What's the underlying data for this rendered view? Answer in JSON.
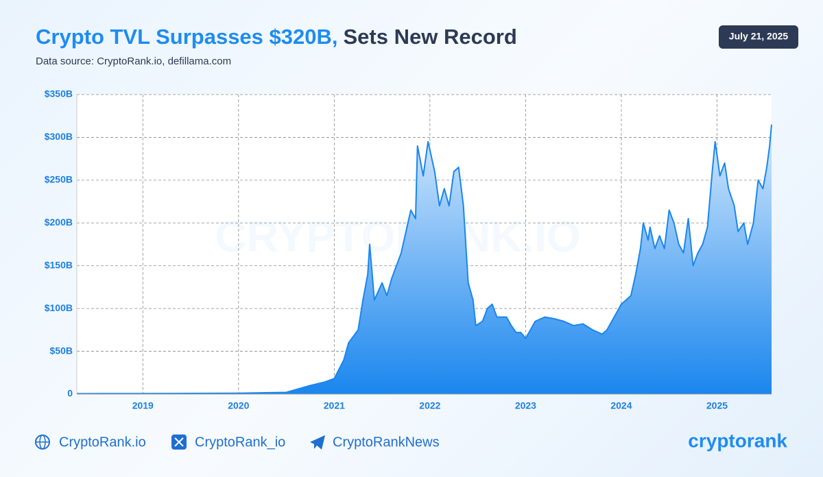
{
  "chart_data": {
    "type": "area",
    "title": "Crypto TVL Surpasses $320B,",
    "title_rest": "Sets New Record",
    "subtitle": "Data source: CryptoRank.io, defillama.com",
    "date": "July 21, 2025",
    "watermark": "CRYPTORANK.IO",
    "logo": "cryptorank",
    "footer_links": [
      "CryptoRank.io",
      "CryptoRank_io",
      "CryptoRankNews"
    ],
    "xlim": [
      2018.31,
      2025.57
    ],
    "xticks": [
      2019,
      2020,
      2021,
      2022,
      2023,
      2024,
      2025
    ],
    "ylim": [
      0,
      350
    ],
    "yticks": [
      {
        "value": 0,
        "label": "0"
      },
      {
        "value": 50,
        "label": "$50B"
      },
      {
        "value": 100,
        "label": "$100B"
      },
      {
        "value": 150,
        "label": "$150B"
      },
      {
        "value": 200,
        "label": "$200B"
      },
      {
        "value": 250,
        "label": "$250B"
      },
      {
        "value": 300,
        "label": "$300B"
      },
      {
        "value": 350,
        "label": "$350B"
      }
    ],
    "grid": true,
    "color": "#1a86ee",
    "series": [
      {
        "name": "TVL",
        "color": "#1a86ee",
        "x": [
          2018.31,
          2018.6,
          2019.0,
          2019.5,
          2020.0,
          2020.5,
          2020.75,
          2020.9,
          2021.0,
          2021.1,
          2021.15,
          2021.25,
          2021.3,
          2021.35,
          2021.37,
          2021.42,
          2021.5,
          2021.55,
          2021.6,
          2021.7,
          2021.8,
          2021.85,
          2021.87,
          2021.93,
          2021.98,
          2022.05,
          2022.1,
          2022.15,
          2022.2,
          2022.25,
          2022.3,
          2022.35,
          2022.38,
          2022.4,
          2022.45,
          2022.48,
          2022.55,
          2022.6,
          2022.65,
          2022.7,
          2022.8,
          2022.85,
          2022.9,
          2022.95,
          2023.0,
          2023.05,
          2023.1,
          2023.2,
          2023.3,
          2023.4,
          2023.5,
          2023.6,
          2023.7,
          2023.8,
          2023.85,
          2023.9,
          2023.95,
          2024.0,
          2024.05,
          2024.1,
          2024.15,
          2024.2,
          2024.23,
          2024.28,
          2024.3,
          2024.35,
          2024.4,
          2024.45,
          2024.5,
          2024.55,
          2024.6,
          2024.65,
          2024.7,
          2024.75,
          2024.8,
          2024.85,
          2024.9,
          2024.95,
          2024.98,
          2025.03,
          2025.08,
          2025.12,
          2025.18,
          2025.22,
          2025.28,
          2025.32,
          2025.38,
          2025.43,
          2025.48,
          2025.52,
          2025.55,
          2025.57
        ],
        "values": [
          0.5,
          0.6,
          0.6,
          0.8,
          1,
          2,
          10,
          14,
          18,
          40,
          60,
          75,
          110,
          140,
          175,
          110,
          130,
          115,
          135,
          165,
          215,
          205,
          290,
          255,
          295,
          260,
          220,
          240,
          220,
          260,
          265,
          220,
          165,
          130,
          110,
          80,
          85,
          100,
          105,
          90,
          90,
          80,
          72,
          72,
          65,
          75,
          85,
          90,
          88,
          85,
          80,
          82,
          75,
          70,
          75,
          85,
          95,
          105,
          110,
          115,
          140,
          170,
          200,
          180,
          195,
          170,
          185,
          170,
          215,
          200,
          175,
          165,
          205,
          150,
          165,
          175,
          195,
          260,
          295,
          255,
          270,
          240,
          220,
          190,
          200,
          175,
          200,
          250,
          240,
          265,
          290,
          315
        ]
      }
    ]
  }
}
